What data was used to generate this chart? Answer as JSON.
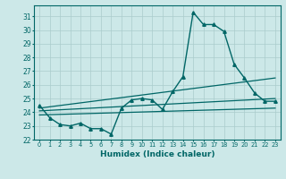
{
  "title": "",
  "xlabel": "Humidex (Indice chaleur)",
  "bg_color": "#cce8e8",
  "grid_color": "#aacccc",
  "line_color": "#006666",
  "xlim": [
    -0.5,
    23.5
  ],
  "ylim": [
    22.0,
    31.8
  ],
  "yticks": [
    22,
    23,
    24,
    25,
    26,
    27,
    28,
    29,
    30,
    31
  ],
  "xticks": [
    0,
    1,
    2,
    3,
    4,
    5,
    6,
    7,
    8,
    9,
    10,
    11,
    12,
    13,
    14,
    15,
    16,
    17,
    18,
    19,
    20,
    21,
    22,
    23
  ],
  "main_series": {
    "x": [
      0,
      1,
      2,
      3,
      4,
      5,
      6,
      7,
      8,
      9,
      10,
      11,
      12,
      13,
      14,
      15,
      16,
      17,
      18,
      19,
      20,
      21,
      22,
      23
    ],
    "y": [
      24.5,
      23.6,
      23.1,
      23.0,
      23.2,
      22.8,
      22.8,
      22.4,
      24.3,
      24.9,
      25.0,
      24.9,
      24.2,
      25.5,
      26.6,
      31.3,
      30.4,
      30.4,
      29.9,
      27.5,
      26.5,
      25.4,
      24.8,
      24.8
    ]
  },
  "reg_lines": [
    {
      "x0": 0,
      "y0": 24.3,
      "x1": 23,
      "y1": 26.5
    },
    {
      "x0": 0,
      "y0": 24.1,
      "x1": 23,
      "y1": 25.0
    },
    {
      "x0": 0,
      "y0": 23.8,
      "x1": 23,
      "y1": 24.3
    }
  ]
}
